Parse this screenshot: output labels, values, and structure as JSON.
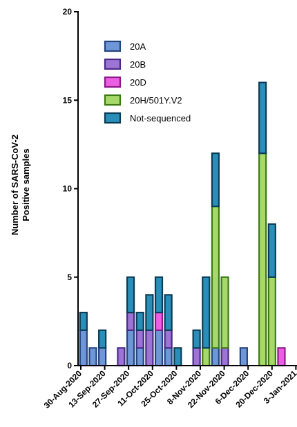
{
  "chart_data": {
    "type": "bar",
    "stacked": true,
    "ylabel_line1": "Number of SARS-CoV-2",
    "ylabel_line2": "Positive samples",
    "ylim": [
      0,
      20
    ],
    "yticks": [
      0,
      5,
      10,
      15,
      20
    ],
    "x_tick_labels": [
      "30-Aug-2020",
      "13-Sep-2020",
      "27-Sep-2020",
      "11-Oct-2020",
      "25-Oct-2020",
      "8-Nov-2020",
      "22-Nov-2020",
      "6-Dec-2020",
      "20-Dec-2020",
      "3-Jan-2021"
    ],
    "legend_position": "top-left",
    "series": [
      {
        "name": "20A",
        "fill": "#6f97d8",
        "stroke": "#23457e",
        "values": [
          2,
          1,
          1,
          0,
          0,
          2,
          1,
          0,
          2,
          1,
          0,
          0,
          0,
          0,
          1,
          0,
          0,
          1,
          0,
          0,
          0,
          0,
          0
        ]
      },
      {
        "name": "20B",
        "fill": "#9b74d4",
        "stroke": "#4a2a86",
        "values": [
          0,
          0,
          0,
          0,
          1,
          1,
          1,
          2,
          0,
          1,
          0,
          0,
          1,
          0,
          0,
          1,
          0,
          0,
          0,
          0,
          0,
          0,
          0
        ]
      },
      {
        "name": "20D",
        "fill": "#ec5ee4",
        "stroke": "#8a1a85",
        "values": [
          0,
          0,
          0,
          0,
          0,
          0,
          0,
          0,
          1,
          0,
          0,
          0,
          0,
          0,
          0,
          0,
          0,
          0,
          0,
          0,
          0,
          1,
          0
        ]
      },
      {
        "name": "20H/501Y.V2",
        "fill": "#a6d96a",
        "stroke": "#3d7a14",
        "values": [
          0,
          0,
          0,
          0,
          0,
          0,
          0,
          0,
          0,
          0,
          0,
          0,
          0,
          1,
          8,
          4,
          0,
          0,
          0,
          12,
          5,
          0,
          0
        ]
      },
      {
        "name": "Not-sequenced",
        "fill": "#2a8fb8",
        "stroke": "#0b3c56",
        "values": [
          1,
          0,
          1,
          0,
          0,
          2,
          1,
          2,
          2,
          2,
          1,
          0,
          1,
          4,
          3,
          0,
          0,
          0,
          0,
          4,
          3,
          0,
          0
        ]
      }
    ]
  }
}
